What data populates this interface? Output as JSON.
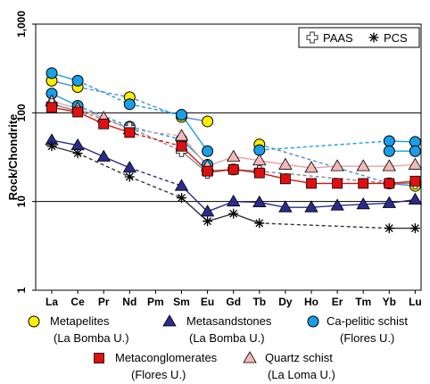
{
  "chart_data": {
    "type": "line",
    "ylabel": "Rock/Chondrite",
    "yscale": "log",
    "ylim": [
      1,
      1000
    ],
    "ytick_labels": [
      "1",
      "10",
      "100",
      "1,000"
    ],
    "gridlines_at": [
      10,
      100
    ],
    "categories": [
      "La",
      "Ce",
      "Pr",
      "Nd",
      "Pm",
      "Sm",
      "Eu",
      "Gd",
      "Tb",
      "Dy",
      "Ho",
      "Er",
      "Tm",
      "Yb",
      "Lu"
    ],
    "legend_top": [
      {
        "name": "PAAS"
      },
      {
        "name": "PCS"
      }
    ],
    "legend_bottom": [
      {
        "line1": "Metapelites",
        "line2": "(La Bomba U.)"
      },
      {
        "line1": "Metasandstones",
        "line2": "(La Bomba U.)"
      },
      {
        "line1": "Ca-pelitic schist",
        "line2": "(Flores U.)"
      },
      {
        "line1": "Metaconglomerates",
        "line2": "(Flores U.)"
      },
      {
        "line1": "Quartz schist",
        "line2": "(La Loma U.)"
      }
    ],
    "series": [
      {
        "key": "metapelites_a",
        "marker": "circle",
        "fill": "#ffee00",
        "line": "#4a8fd8",
        "dashed_gaps": true,
        "values": [
          230,
          195,
          null,
          150,
          null,
          90,
          80,
          null,
          null,
          null,
          null,
          null,
          null,
          null,
          null
        ]
      },
      {
        "key": "metapelites_b",
        "marker": "circle",
        "fill": "#ffee00",
        "line": "#4a8fd8",
        "dashed_gaps": true,
        "values": [
          null,
          null,
          null,
          null,
          null,
          null,
          null,
          null,
          44,
          null,
          null,
          null,
          null,
          16,
          15
        ]
      },
      {
        "key": "capelitic_a",
        "marker": "circle",
        "fill": "#1a9ee8",
        "line": "#1a9ee8",
        "dashed_gaps": true,
        "values": [
          280,
          230,
          null,
          125,
          null,
          95,
          37,
          null,
          null,
          null,
          null,
          null,
          null,
          null,
          null
        ]
      },
      {
        "key": "capelitic_b",
        "marker": "circle",
        "fill": "#1a9ee8",
        "line": "#1a9ee8",
        "dashed_gaps": true,
        "values": [
          165,
          120,
          null,
          70,
          null,
          50,
          26,
          null,
          null,
          null,
          null,
          null,
          null,
          null,
          null
        ]
      },
      {
        "key": "capelitic_c",
        "marker": "circle",
        "fill": "#1a9ee8",
        "line": "#1a9ee8",
        "dashed_gaps": true,
        "values": [
          null,
          null,
          null,
          null,
          null,
          null,
          null,
          null,
          38,
          null,
          null,
          null,
          null,
          48,
          47
        ]
      },
      {
        "key": "capelitic_d",
        "marker": "circle",
        "fill": "#1a9ee8",
        "line": "#1a9ee8",
        "dashed_gaps": true,
        "values": [
          null,
          null,
          null,
          null,
          null,
          null,
          null,
          null,
          null,
          null,
          null,
          null,
          null,
          37,
          37
        ]
      },
      {
        "key": "quartz",
        "marker": "triangle",
        "fill": "#f4b8b8",
        "line": "#e8a0a0",
        "dashed_gaps": true,
        "values": [
          135,
          112,
          88,
          65,
          null,
          55,
          25,
          32,
          29,
          26,
          24,
          25,
          25,
          25,
          26
        ]
      },
      {
        "key": "paas",
        "marker": "cross",
        "fill": "#ffffff",
        "line": "#888888",
        "dashed_gaps": true,
        "values": [
          125,
          105,
          null,
          68,
          null,
          37,
          21,
          23,
          22,
          null,
          null,
          null,
          null,
          16,
          16
        ]
      },
      {
        "key": "metaconglomerates",
        "marker": "square",
        "fill": "#e01010",
        "line": "#e01010",
        "dashed_gaps": true,
        "values": [
          115,
          102,
          75,
          60,
          null,
          42,
          22,
          23,
          21,
          18,
          16,
          16,
          16,
          16,
          17
        ]
      },
      {
        "key": "metasandstones",
        "marker": "triangle",
        "fill": "#2b2b8c",
        "line": "#2b2b8c",
        "dashed_gaps": true,
        "values": [
          49,
          43,
          32,
          24,
          null,
          15,
          7.7,
          10,
          9.8,
          8.6,
          8.6,
          9,
          9.3,
          9.6,
          10.5
        ]
      },
      {
        "key": "pcs",
        "marker": "star",
        "fill": "#000000",
        "line": "#333333",
        "dashed_gaps": true,
        "values": [
          42,
          35,
          null,
          19,
          null,
          11,
          6,
          7.3,
          5.7,
          null,
          null,
          null,
          null,
          5,
          5
        ]
      }
    ]
  }
}
